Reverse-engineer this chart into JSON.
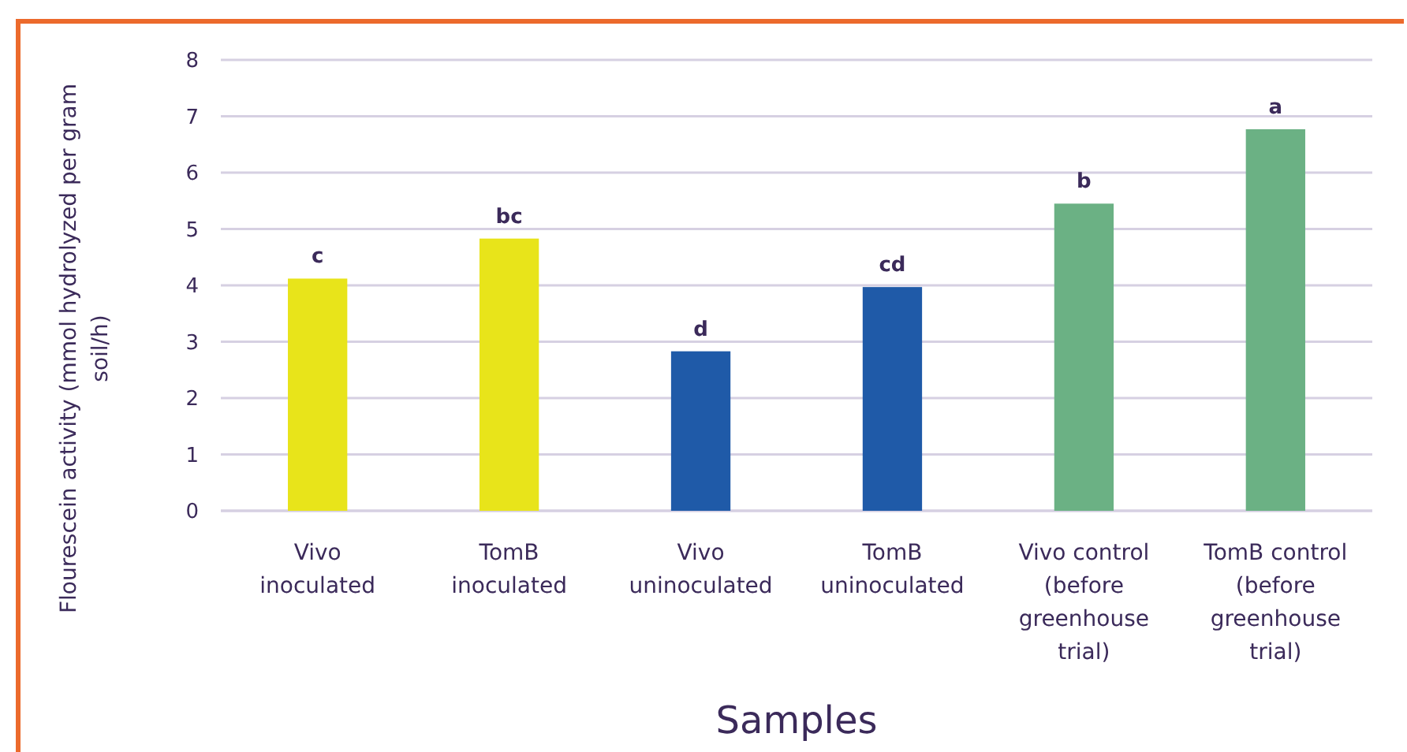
{
  "chart_data": {
    "type": "bar",
    "xlabel": "Samples",
    "ylabel": "Flourescein activity (mmol hydrolyzed per gram soil/h)",
    "categories": [
      "Vivo inoculated",
      "TomB inoculated",
      "Vivo uninoculated",
      "TomB uninoculated",
      "Vivo control (before greenhouse trial)",
      "TomB control (before greenhouse trial)"
    ],
    "values": [
      4.12,
      4.83,
      2.83,
      3.97,
      5.45,
      6.77
    ],
    "colors": [
      "#e8e41a",
      "#e8e41a",
      "#1f5aa8",
      "#1f5aa8",
      "#6bb184",
      "#6bb184"
    ],
    "ylim": [
      0,
      8
    ],
    "yticks": [
      0,
      1,
      2,
      3,
      4,
      5,
      6,
      7,
      8
    ],
    "grid": "y",
    "annotations": [
      {
        "text": "c",
        "x": "Vivo inoculated",
        "y": 4.12
      },
      {
        "text": "bc",
        "x": "TomB inoculated",
        "y": 4.83
      },
      {
        "text": "d",
        "x": "Vivo uninoculated",
        "y": 2.83
      },
      {
        "text": "cd",
        "x": "TomB uninoculated",
        "y": 3.97
      },
      {
        "text": "b",
        "x": "Vivo control (before greenhouse trial)",
        "y": 5.45
      },
      {
        "text": "a",
        "x": "TomB control (before greenhouse trial)",
        "y": 6.77
      }
    ]
  }
}
